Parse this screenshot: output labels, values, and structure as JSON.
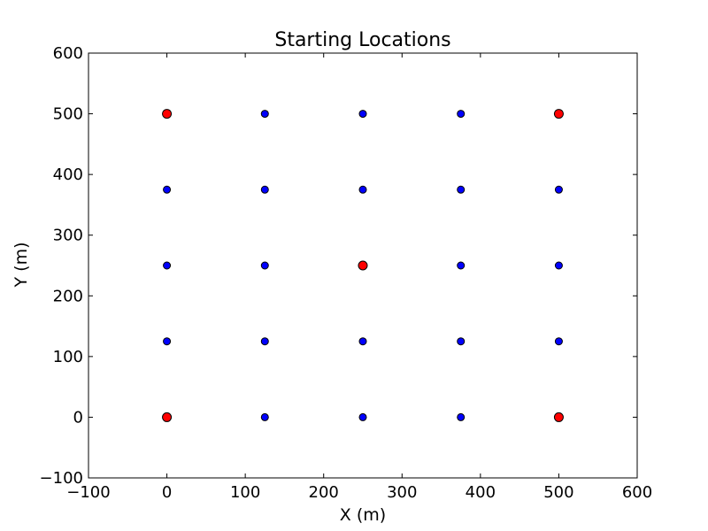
{
  "chart_data": {
    "type": "scatter",
    "title": "Starting Locations",
    "xlabel": "X (m)",
    "ylabel": "Y (m)",
    "xlim": [
      -100,
      600
    ],
    "ylim": [
      -100,
      600
    ],
    "xticks": [
      -100,
      0,
      100,
      200,
      300,
      400,
      500,
      600
    ],
    "yticks": [
      -100,
      0,
      100,
      200,
      300,
      400,
      500,
      600
    ],
    "tick_labels_x": [
      "−100",
      "0",
      "100",
      "200",
      "300",
      "400",
      "500",
      "600"
    ],
    "tick_labels_y": [
      "−100",
      "0",
      "100",
      "200",
      "300",
      "400",
      "500",
      "600"
    ],
    "grid": false,
    "legend": "none",
    "series": [
      {
        "color": "#0000ff",
        "points": [
          [
            125,
            500
          ],
          [
            250,
            500
          ],
          [
            375,
            500
          ],
          [
            0,
            375
          ],
          [
            125,
            375
          ],
          [
            250,
            375
          ],
          [
            375,
            375
          ],
          [
            500,
            375
          ],
          [
            0,
            250
          ],
          [
            125,
            250
          ],
          [
            375,
            250
          ],
          [
            500,
            250
          ],
          [
            0,
            125
          ],
          [
            125,
            125
          ],
          [
            250,
            125
          ],
          [
            375,
            125
          ],
          [
            500,
            125
          ],
          [
            125,
            0
          ],
          [
            250,
            0
          ],
          [
            375,
            0
          ]
        ]
      },
      {
        "color": "#ff0000",
        "points": [
          [
            0,
            500
          ],
          [
            500,
            500
          ],
          [
            250,
            250
          ],
          [
            0,
            0
          ],
          [
            500,
            0
          ]
        ]
      }
    ]
  }
}
